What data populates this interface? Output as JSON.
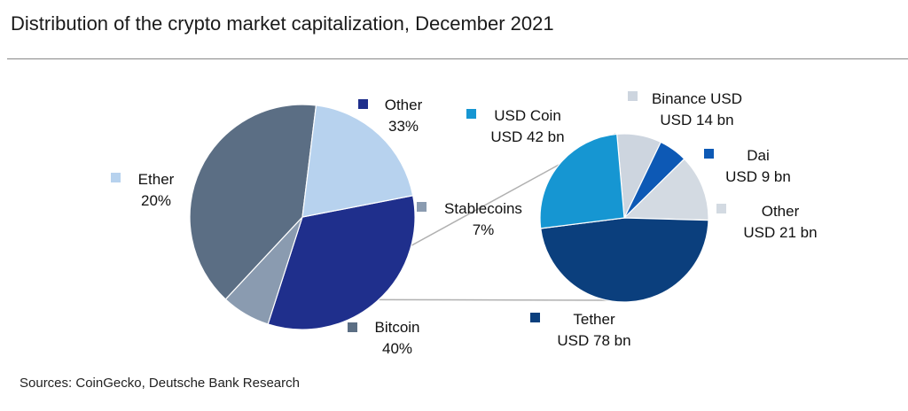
{
  "chart_data": [
    {
      "type": "pie",
      "title": "Distribution of the crypto market capitalization, December 2021",
      "slices": [
        {
          "label": "Other",
          "value_label": "33%",
          "value": 33,
          "color": "#1f2f8c"
        },
        {
          "label": "Stablecoins",
          "value_label": "7%",
          "value": 7,
          "color": "#8a9bb0"
        },
        {
          "label": "Bitcoin",
          "value_label": "40%",
          "value": 40,
          "color": "#5b6e84"
        },
        {
          "label": "Ether",
          "value_label": "20%",
          "value": 20,
          "color": "#b7d2ee"
        }
      ]
    },
    {
      "type": "pie",
      "title": "Stablecoins",
      "slices": [
        {
          "label": "Binance USD",
          "value_label": "USD 14 bn",
          "value": 14,
          "color": "#cdd5df"
        },
        {
          "label": "Dai",
          "value_label": "USD 9 bn",
          "value": 9,
          "color": "#0d59b5"
        },
        {
          "label": "Other",
          "value_label": "USD 21 bn",
          "value": 21,
          "color": "#d3dae2"
        },
        {
          "label": "Tether",
          "value_label": "USD 78 bn",
          "value": 78,
          "color": "#0b3f7d"
        },
        {
          "label": "USD Coin",
          "value_label": "USD 42 bn",
          "value": 42,
          "color": "#1696d2"
        }
      ]
    }
  ],
  "source": "Sources: CoinGecko, Deutsche Bank Research"
}
